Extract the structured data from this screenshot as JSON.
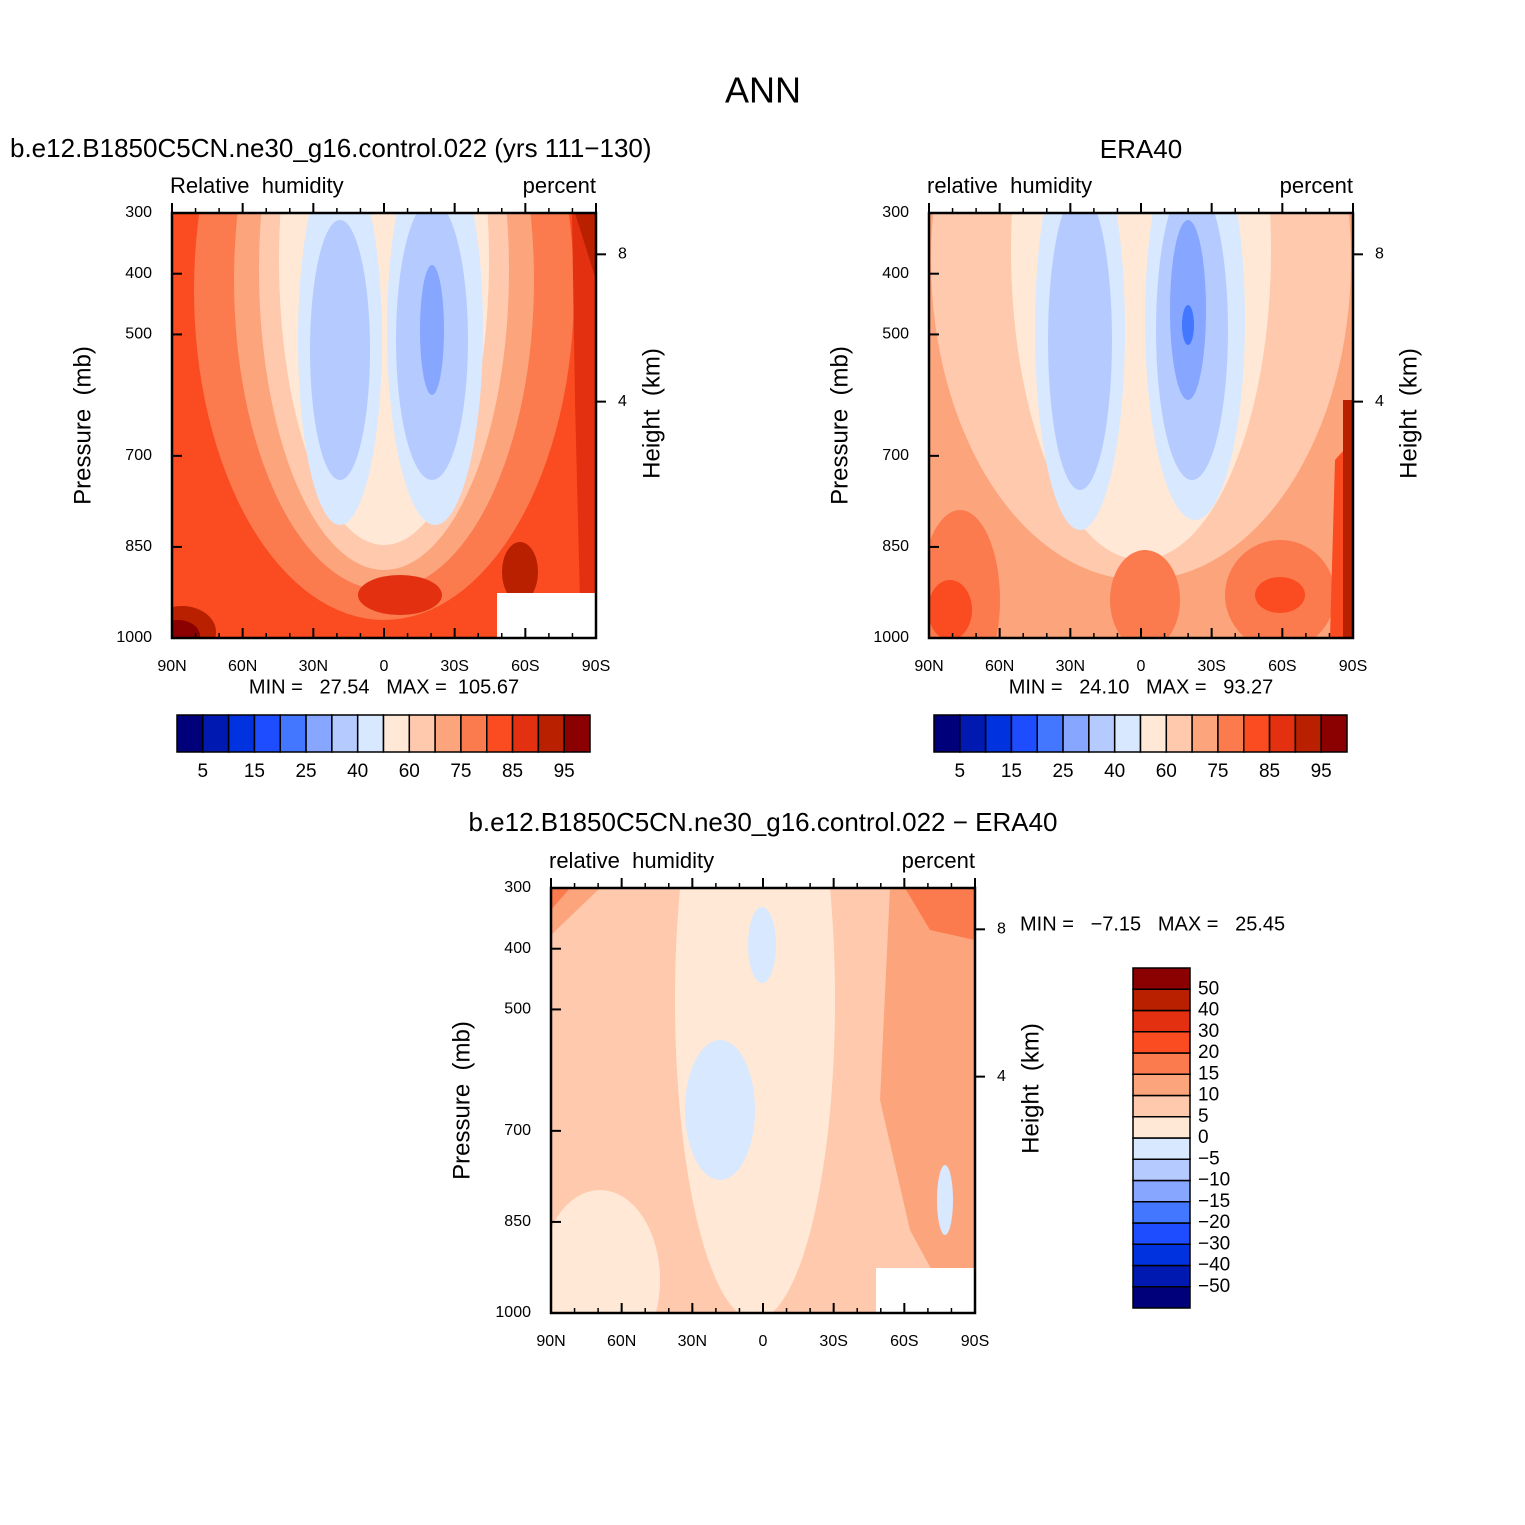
{
  "title": "ANN",
  "chart_data": [
    {
      "type": "contour",
      "title": "b.e12.B1850C5CN.ne30_g16.control.022 (yrs 111−130)",
      "subtitle_left": "Relative  humidity",
      "subtitle_right": "percent",
      "ylabel": "Pressure  (mb)",
      "y2label": "Height  (km)",
      "stats": "MIN =   27.54   MAX =  105.67",
      "xlim": [
        90,
        -90
      ],
      "xticks": [
        {
          "value": 90,
          "label": "90N"
        },
        {
          "value": 60,
          "label": "60N"
        },
        {
          "value": 30,
          "label": "30N"
        },
        0,
        {
          "value": -30,
          "label": "30S"
        },
        {
          "value": -60,
          "label": "60S"
        },
        {
          "value": -90,
          "label": "90S"
        }
      ],
      "ylim": [
        1000,
        300
      ],
      "yticks": [
        300,
        400,
        500,
        700,
        850,
        1000
      ],
      "y2ticks": [
        8,
        4
      ],
      "colorbar": {
        "orientation": "horizontal",
        "levels": [
          5,
          10,
          15,
          20,
          25,
          30,
          40,
          50,
          60,
          70,
          75,
          80,
          85,
          90,
          95
        ],
        "ticks": [
          5,
          15,
          25,
          40,
          60,
          75,
          85,
          95
        ],
        "colors": [
          "#00007a",
          "#0019b0",
          "#0032e0",
          "#1e4cff",
          "#4477ff",
          "#86a6ff",
          "#b5cbff",
          "#d7e8ff",
          "#ffe9d6",
          "#ffc9ad",
          "#fca47c",
          "#fb7a4e",
          "#fa4c20",
          "#e23010",
          "#b82000",
          "#8b0000"
        ]
      }
    },
    {
      "type": "contour",
      "title": "ERA40",
      "subtitle_left": "relative  humidity",
      "subtitle_right": "percent",
      "ylabel": "Pressure  (mb)",
      "y2label": "Height  (km)",
      "stats": "MIN =   24.10   MAX =   93.27",
      "xlim": [
        90,
        -90
      ],
      "xticks": [
        {
          "value": 90,
          "label": "90N"
        },
        {
          "value": 60,
          "label": "60N"
        },
        {
          "value": 30,
          "label": "30N"
        },
        0,
        {
          "value": -30,
          "label": "30S"
        },
        {
          "value": -60,
          "label": "60S"
        },
        {
          "value": -90,
          "label": "90S"
        }
      ],
      "ylim": [
        1000,
        300
      ],
      "yticks": [
        300,
        400,
        500,
        700,
        850,
        1000
      ],
      "y2ticks": [
        8,
        4
      ],
      "colorbar": {
        "orientation": "horizontal",
        "levels": [
          5,
          10,
          15,
          20,
          25,
          30,
          40,
          50,
          60,
          70,
          75,
          80,
          85,
          90,
          95
        ],
        "ticks": [
          5,
          15,
          25,
          40,
          60,
          75,
          85,
          95
        ],
        "colors": [
          "#00007a",
          "#0019b0",
          "#0032e0",
          "#1e4cff",
          "#4477ff",
          "#86a6ff",
          "#b5cbff",
          "#d7e8ff",
          "#ffe9d6",
          "#ffc9ad",
          "#fca47c",
          "#fb7a4e",
          "#fa4c20",
          "#e23010",
          "#b82000",
          "#8b0000"
        ]
      }
    },
    {
      "type": "contour",
      "title": "b.e12.B1850C5CN.ne30_g16.control.022 − ERA40",
      "subtitle_left": "relative  humidity",
      "subtitle_right": "percent",
      "ylabel": "Pressure  (mb)",
      "y2label": "Height  (km)",
      "stats": "MIN =   −7.15   MAX =   25.45",
      "xlim": [
        90,
        -90
      ],
      "xticks": [
        {
          "value": 90,
          "label": "90N"
        },
        {
          "value": 60,
          "label": "60N"
        },
        {
          "value": 30,
          "label": "30N"
        },
        0,
        {
          "value": -30,
          "label": "30S"
        },
        {
          "value": -60,
          "label": "60S"
        },
        {
          "value": -90,
          "label": "90S"
        }
      ],
      "ylim": [
        1000,
        300
      ],
      "yticks": [
        300,
        400,
        500,
        700,
        850,
        1000
      ],
      "y2ticks": [
        8,
        4
      ],
      "colorbar": {
        "orientation": "vertical",
        "levels": [
          -50,
          -40,
          -30,
          -20,
          -15,
          -10,
          -5,
          0,
          5,
          10,
          15,
          20,
          30,
          40,
          50
        ],
        "ticks": [
          {
            "value": -50,
            "label": "−50"
          },
          {
            "value": -40,
            "label": "−40"
          },
          {
            "value": -30,
            "label": "−30"
          },
          {
            "value": -20,
            "label": "−20"
          },
          {
            "value": -15,
            "label": "−15"
          },
          {
            "value": -10,
            "label": "−10"
          },
          {
            "value": -5,
            "label": "−5"
          },
          0,
          5,
          10,
          15,
          20,
          30,
          40,
          50
        ],
        "colors": [
          "#00007a",
          "#0019b0",
          "#0032e0",
          "#1e4cff",
          "#4477ff",
          "#86a6ff",
          "#b5cbff",
          "#d7e8ff",
          "#ffe9d6",
          "#ffc9ad",
          "#fca47c",
          "#fb7a4e",
          "#fa4c20",
          "#e23010",
          "#b82000",
          "#8b0000"
        ]
      }
    }
  ]
}
